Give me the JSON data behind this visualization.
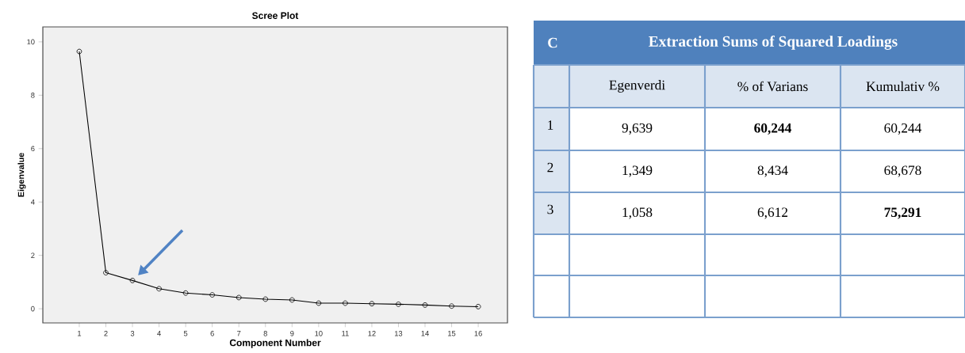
{
  "chart_data": [
    {
      "type": "line",
      "title": "Scree Plot",
      "xlabel": "Component Number",
      "ylabel": "Eigenvalue",
      "color": "#000000",
      "marker": "circle",
      "x": [
        1,
        2,
        3,
        4,
        5,
        6,
        7,
        8,
        9,
        10,
        11,
        12,
        13,
        14,
        15,
        16
      ],
      "values": [
        9.64,
        1.35,
        1.06,
        0.75,
        0.59,
        0.52,
        0.42,
        0.36,
        0.33,
        0.21,
        0.21,
        0.19,
        0.17,
        0.14,
        0.1,
        0.08
      ],
      "xlim": [
        -0.37,
        17.1
      ],
      "ylim": [
        -0.53,
        10.56
      ],
      "xticks": [
        1,
        2,
        3,
        4,
        5,
        6,
        7,
        8,
        9,
        10,
        11,
        12,
        13,
        14,
        15,
        16
      ],
      "yticks": [
        0,
        2,
        4,
        6,
        8,
        10
      ]
    },
    {
      "type": "other",
      "title": "Extraction Sums of Squared Loadings",
      "annotations": [
        "C",
        "Egenverdi",
        "% of Varians",
        "Kumulativ %",
        "1",
        "9,639",
        "**60,244**",
        "60,244",
        "2",
        "1,349",
        "8,434",
        "68,678",
        "3",
        "1,058",
        "6,612",
        "**75,291**"
      ]
    }
  ]
}
